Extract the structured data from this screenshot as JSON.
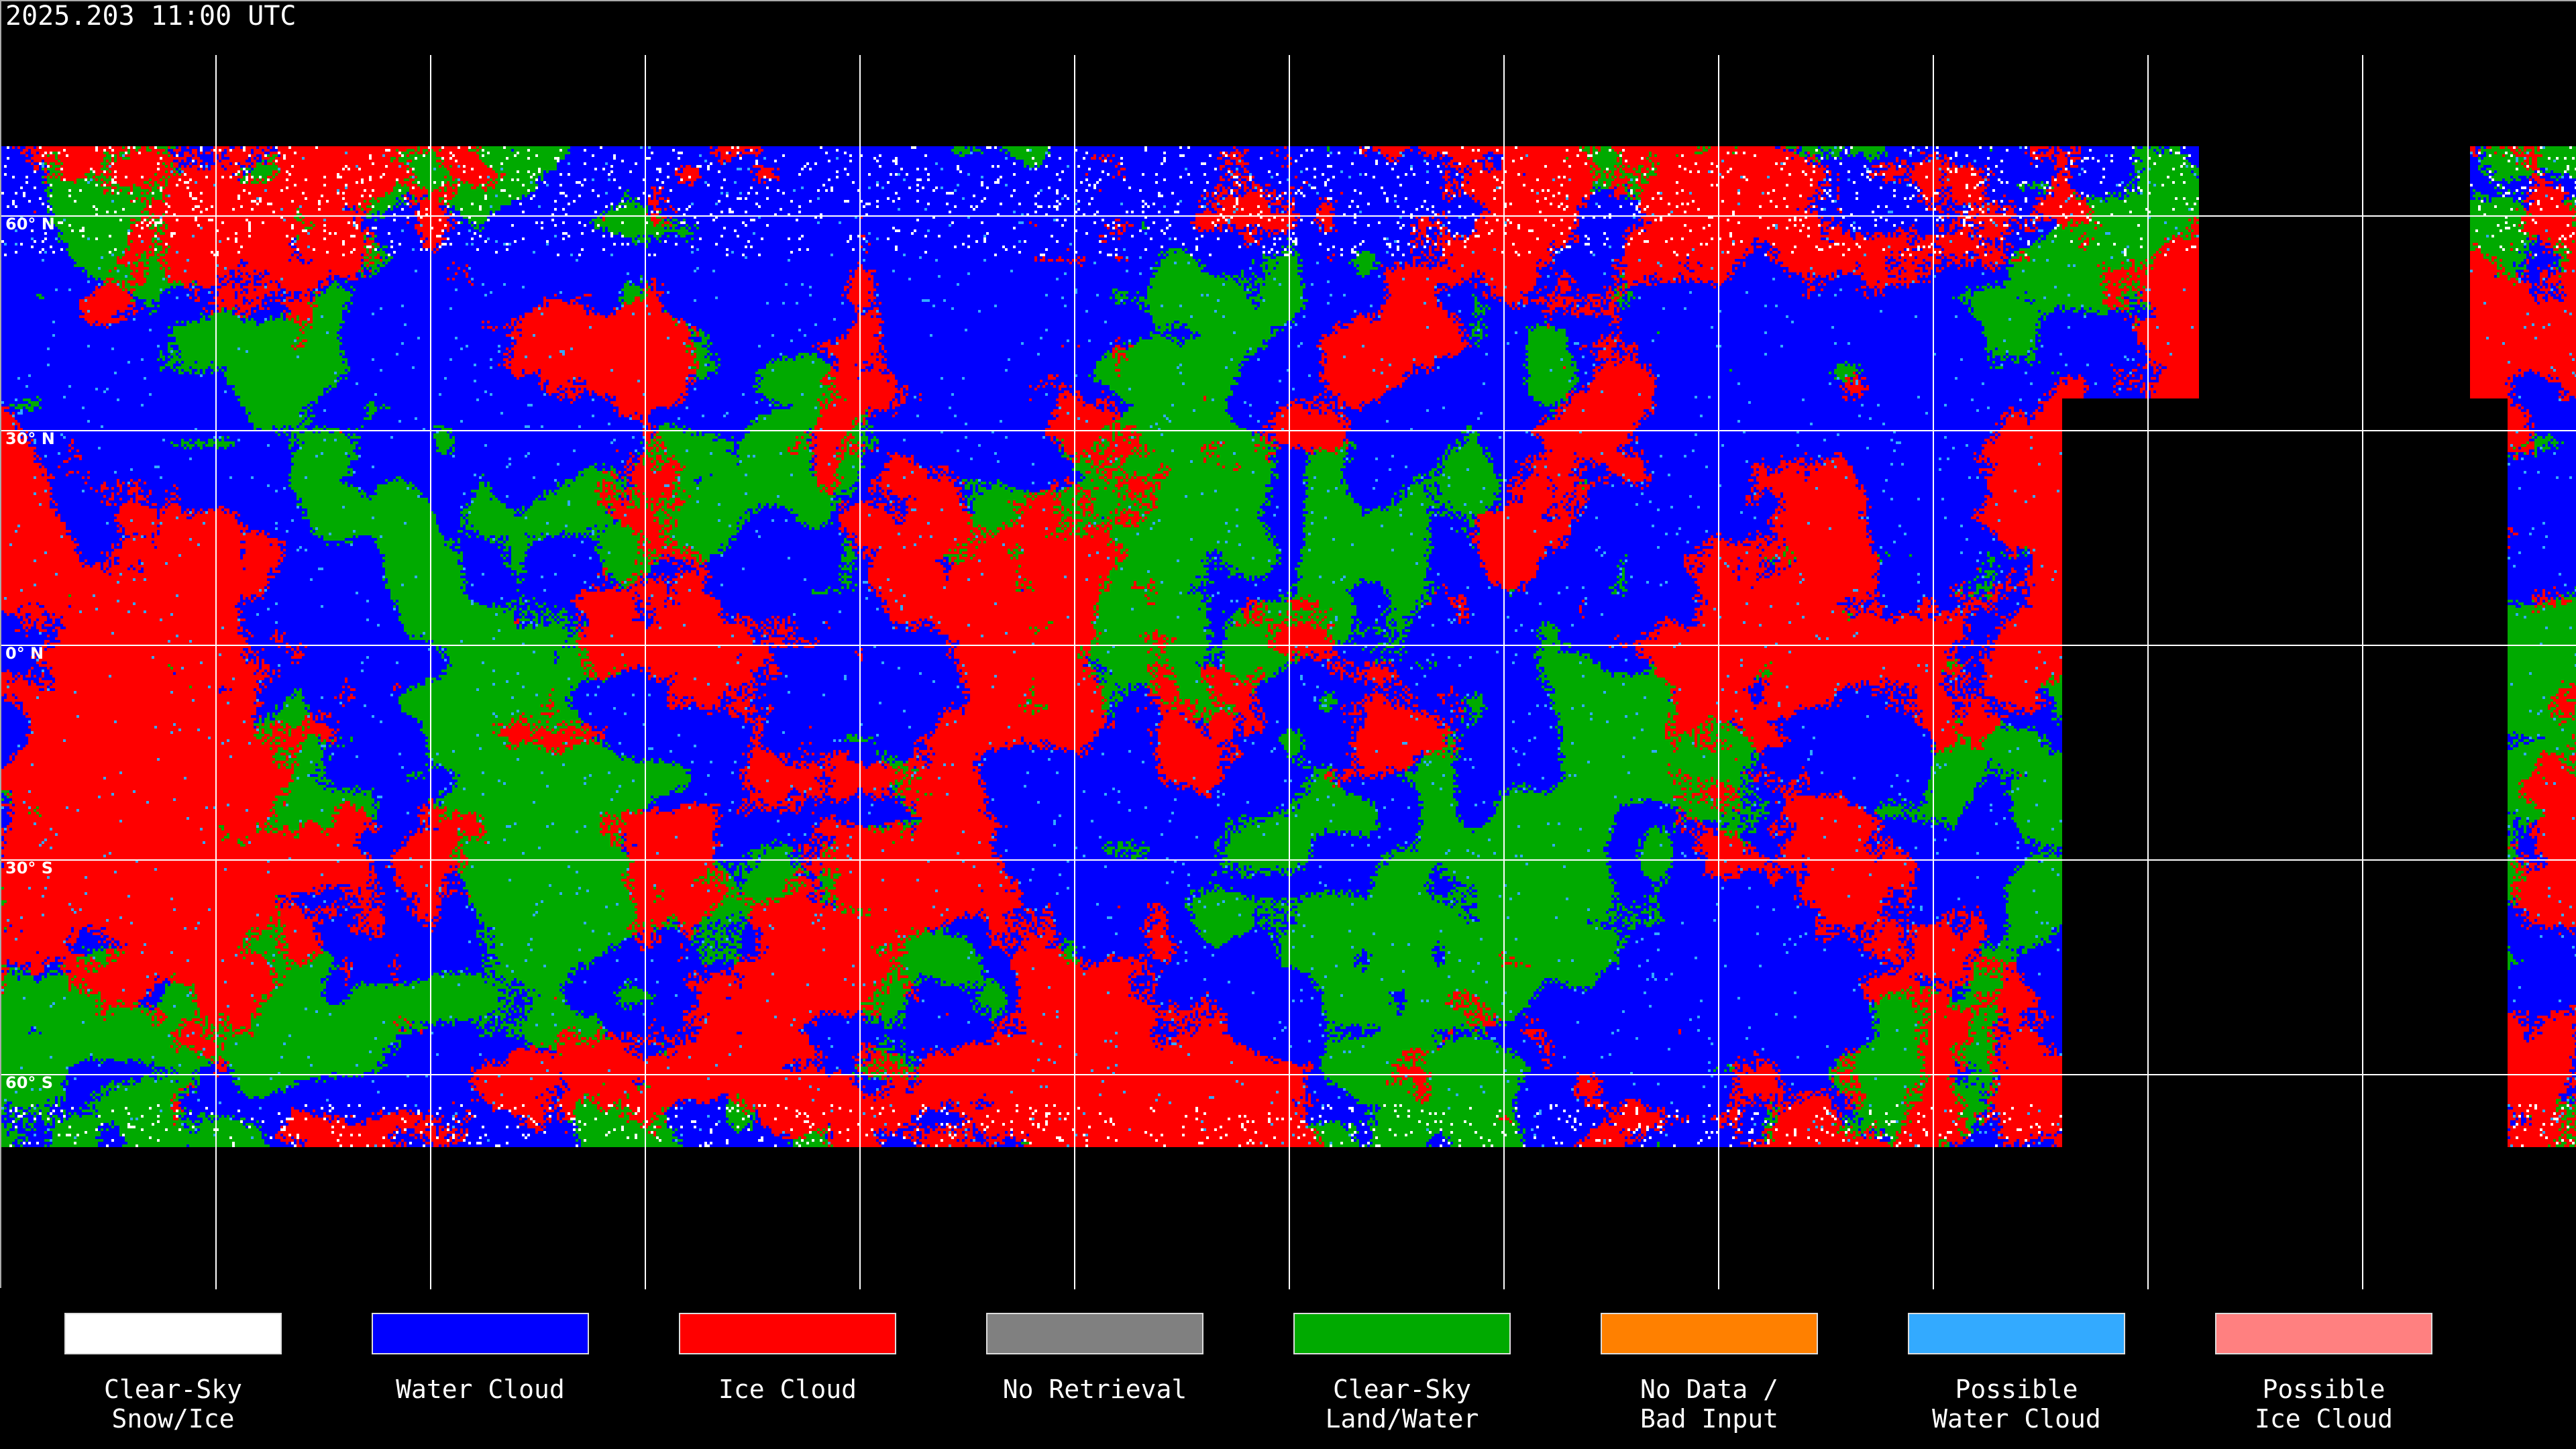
{
  "title": "2025.203 11:00 UTC",
  "latitude_labels": [
    "60° N",
    "30° N",
    "0° N",
    "30° S",
    "60° S"
  ],
  "legend": [
    {
      "label": "Clear-Sky\nSnow/Ice",
      "color": "#ffffff"
    },
    {
      "label": "Water Cloud",
      "color": "#0000ff"
    },
    {
      "label": "Ice Cloud",
      "color": "#ff0000"
    },
    {
      "label": "No Retrieval",
      "color": "#808080"
    },
    {
      "label": "Clear-Sky\nLand/Water",
      "color": "#00aa00"
    },
    {
      "label": "No Data /\nBad Input",
      "color": "#ff8000"
    },
    {
      "label": "Possible\nWater Cloud",
      "color": "#33aaff"
    },
    {
      "label": "Possible\nIce Cloud",
      "color": "#ff8080"
    }
  ]
}
